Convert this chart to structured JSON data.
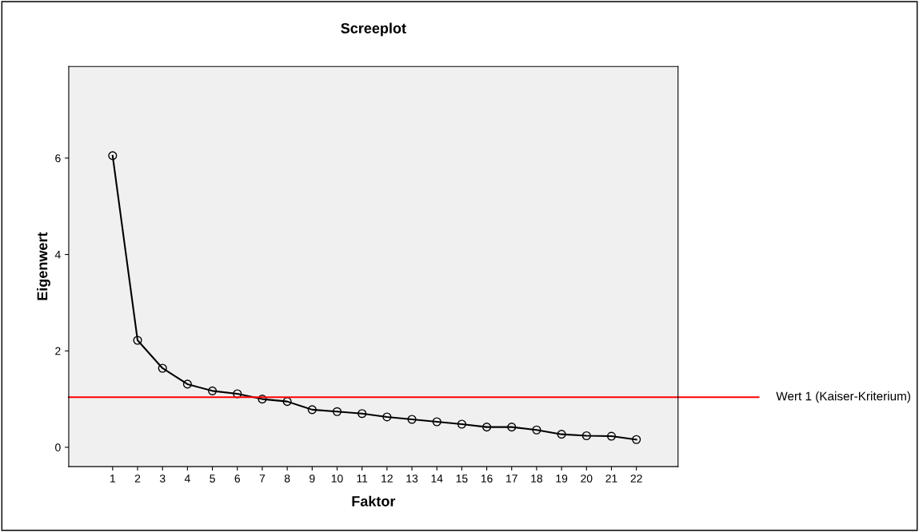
{
  "chart_data": {
    "type": "line",
    "title": "Screeplot",
    "xlabel": "Faktor",
    "ylabel": "Eigenwert",
    "categories": [
      "1",
      "2",
      "3",
      "4",
      "5",
      "6",
      "7",
      "8",
      "9",
      "10",
      "11",
      "12",
      "13",
      "14",
      "15",
      "16",
      "17",
      "18",
      "19",
      "20",
      "21",
      "22"
    ],
    "series": [
      {
        "color": "#000000",
        "values": [
          6.05,
          2.22,
          1.64,
          1.31,
          1.17,
          1.11,
          1.0,
          0.95,
          0.78,
          0.74,
          0.7,
          0.63,
          0.58,
          0.53,
          0.48,
          0.42,
          0.42,
          0.36,
          0.27,
          0.24,
          0.23,
          0.16
        ]
      }
    ],
    "ylim": [
      -0.4,
      7.9
    ],
    "yticks": [
      0,
      2,
      4,
      6
    ],
    "ref_lines": [
      {
        "axis": "y",
        "value": 1.04,
        "label": "Wert 1 (Kaiser-Kriterium)",
        "color": "#ff0000"
      }
    ],
    "marker": "circle",
    "line_style": "solid",
    "grid": false,
    "legend": false
  }
}
